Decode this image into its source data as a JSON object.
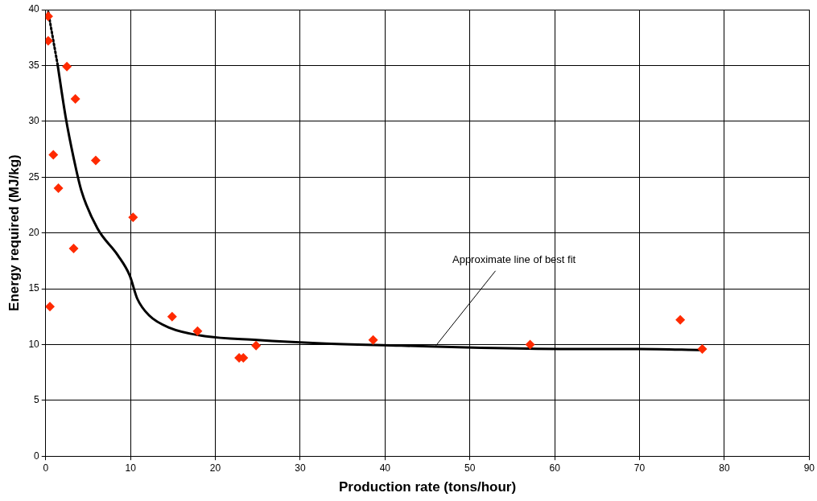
{
  "chart_data": {
    "type": "scatter",
    "xlabel": "Production rate (tons/hour)",
    "ylabel": "Energy required (MJ/kg)",
    "xlim": [
      0,
      90
    ],
    "xticks": [
      0,
      10,
      20,
      30,
      40,
      50,
      60,
      70,
      80,
      90
    ],
    "ylim": [
      0,
      40
    ],
    "yticks": [
      0,
      5,
      10,
      15,
      20,
      25,
      30,
      35,
      40
    ],
    "grid": true,
    "marker": "diamond",
    "series": [
      {
        "color": "#ff2a00",
        "x": [
          0.3,
          0.3,
          2.5,
          3.5,
          0.9,
          1.5,
          5.9,
          3.3,
          10.3,
          0.5,
          14.9,
          17.9,
          22.8,
          23.3,
          24.8,
          38.6,
          57.1,
          74.8,
          77.4
        ],
        "values": [
          39.4,
          37.2,
          34.9,
          32.0,
          27.0,
          24.0,
          26.5,
          18.6,
          21.4,
          13.4,
          12.5,
          11.2,
          8.8,
          8.8,
          9.9,
          10.4,
          10.0,
          12.2,
          9.6
        ]
      },
      {
        "type": "line",
        "color": "#000000",
        "line_style": "dotted",
        "marker": "none",
        "x": [
          0.3,
          1.4
        ],
        "values": [
          39.8,
          35.1
        ]
      },
      {
        "type": "line",
        "color": "#000000",
        "line_style": "solid",
        "marker": "none",
        "x": [
          1.4,
          2.35,
          3.3,
          4.2,
          6.1,
          8.5,
          9.9,
          10.8,
          12.2,
          14.6,
          18.3,
          24.9,
          32.5,
          41.9,
          51.3,
          60.7,
          70.1,
          77.4
        ],
        "values": [
          35.1,
          30.4,
          26.7,
          23.8,
          20.4,
          18.0,
          16.2,
          14.1,
          12.6,
          11.5,
          10.8,
          10.4,
          10.1,
          9.9,
          9.7,
          9.6,
          9.6,
          9.5
        ]
      }
    ],
    "annotations": [
      {
        "text": "Approximate line of best fit",
        "x": 46,
        "y": 9.9
      }
    ]
  }
}
